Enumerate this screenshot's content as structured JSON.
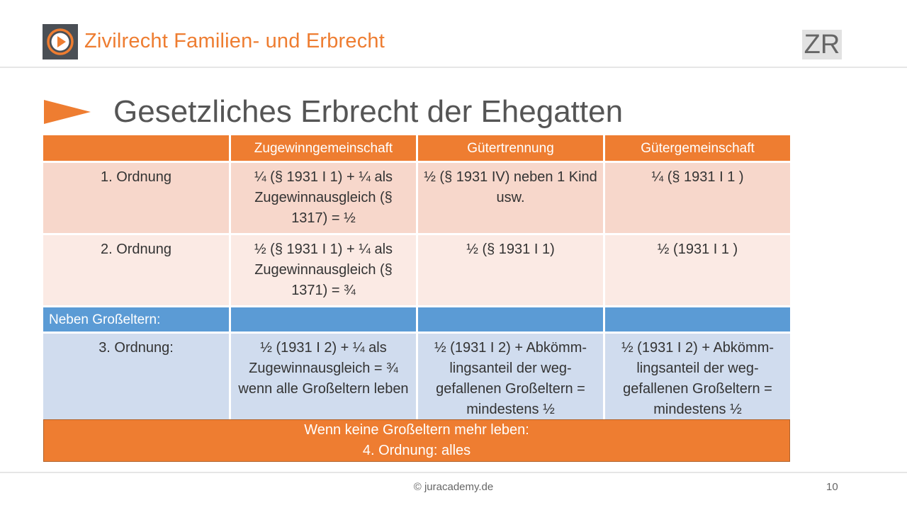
{
  "header": {
    "title": "Zivilrecht Familien- und Erbrecht",
    "badge": "ZR",
    "logo_icon": "play-circle-icon"
  },
  "slide": {
    "title": "Gesetzliches Erbrecht der Ehegatten",
    "bullet_icon": "arrow-right-icon"
  },
  "table": {
    "headers": [
      "",
      "Zugewinngemeinschaft",
      "Gütertrennung",
      "Gütergemeinschaft"
    ],
    "rows": [
      [
        "1. Ordnung",
        "¼ (§ 1931 I 1) + ¼ als Zugewinnausgleich  (§ 1317) = ½",
        "½ (§ 1931 IV) neben 1 Kind usw.",
        "¼ (§ 1931 I 1 )"
      ],
      [
        "2. Ordnung",
        "½ (§ 1931 I 1) + ¼ als Zugewinnausgleich  (§ 1371) = ¾",
        "½ (§ 1931 I 1)",
        "½ (1931 I 1 )"
      ]
    ],
    "band_label": "Neben Großeltern:",
    "row3": [
      "3. Ordnung:",
      "½ (1931 I 2) + ¼ als Zugewinnausgleich  = ¾ wenn alle Großeltern leben",
      "½ (1931 I 2) + Abkömm-lingsanteil der weg-gefallenen Großeltern = mindestens ½",
      "½ (1931 I 2) + Abkömm-lingsanteil der weg-gefallenen Großeltern = mindestens ½"
    ]
  },
  "note": {
    "line1": "Wenn keine Großeltern mehr leben:",
    "line2": "4. Ordnung:  alles"
  },
  "footer": {
    "copyright": "© juracademy.de",
    "page": "10"
  },
  "colors": {
    "accent": "#ee7d31",
    "blue": "#5b9bd5",
    "row1": "#f7d7cb",
    "row2": "#fbeae4",
    "row3": "#d0dcee"
  }
}
